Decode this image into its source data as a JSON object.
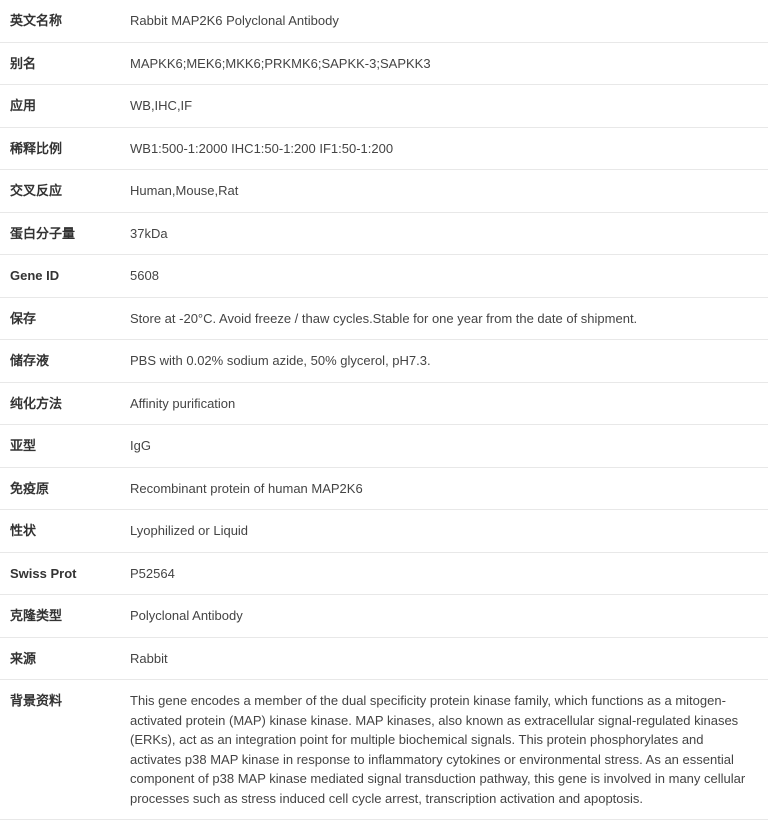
{
  "rows": [
    {
      "label": "英文名称",
      "value": "Rabbit MAP2K6 Polyclonal Antibody"
    },
    {
      "label": "别名",
      "value": "MAPKK6;MEK6;MKK6;PRKMK6;SAPKK-3;SAPKK3"
    },
    {
      "label": "应用",
      "value": "WB,IHC,IF"
    },
    {
      "label": "稀释比例",
      "value": "WB1:500-1:2000 IHC1:50-1:200 IF1:50-1:200"
    },
    {
      "label": "交叉反应",
      "value": "Human,Mouse,Rat"
    },
    {
      "label": "蛋白分子量",
      "value": "37kDa"
    },
    {
      "label": "Gene ID",
      "value": "5608"
    },
    {
      "label": "保存",
      "value": "Store at -20°C. Avoid freeze / thaw cycles.Stable for one year from the date of shipment."
    },
    {
      "label": "储存液",
      "value": "PBS with 0.02% sodium azide, 50% glycerol, pH7.3."
    },
    {
      "label": "纯化方法",
      "value": "Affinity purification"
    },
    {
      "label": "亚型",
      "value": "IgG"
    },
    {
      "label": "免疫原",
      "value": "Recombinant protein of human MAP2K6"
    },
    {
      "label": "性状",
      "value": "Lyophilized or Liquid"
    },
    {
      "label": "Swiss Prot",
      "value": "P52564"
    },
    {
      "label": "克隆类型",
      "value": "Polyclonal Antibody"
    },
    {
      "label": "来源",
      "value": "Rabbit"
    },
    {
      "label": "背景资料",
      "value": "This gene encodes a member of the dual specificity protein kinase family, which functions as a mitogen-activated protein (MAP) kinase kinase. MAP kinases, also known as extracellular signal-regulated kinases (ERKs), act as an integration point for multiple biochemical signals. This protein phosphorylates and activates p38 MAP kinase in response to inflammatory cytokines or environmental stress. As an essential component of p38 MAP kinase mediated signal transduction pathway, this gene is involved in many cellular processes such as stress induced cell cycle arrest, transcription activation and apoptosis."
    }
  ],
  "styling": {
    "background_color": "#ffffff",
    "border_color": "#e8e8e8",
    "text_color": "#333333",
    "value_color": "#444444",
    "font_family": "Microsoft YaHei, Arial, sans-serif",
    "label_fontsize": 13,
    "value_fontsize": 13,
    "label_weight": "bold",
    "label_column_width": 130,
    "row_padding_vertical": 11
  }
}
